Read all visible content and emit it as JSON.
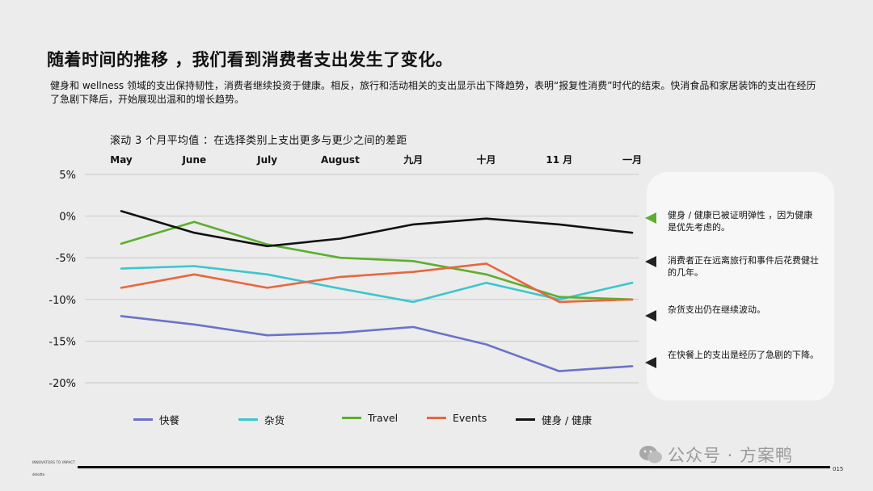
{
  "headline": "随着时间的推移 ，我们看到消费者支出发生了变化。",
  "subtitle": "健身和 wellness 领域的支出保持韧性，消费者继续投资于健康。相反，旅行和活动相关的支出显示出下降趋势，表明“报复性消费”时代的结束。快消食品和家居装饰的支出在经历了急剧下降后，开始展现出温和的增长趋势。",
  "chart_data": {
    "type": "line",
    "title": "滚动 3 个月平均值 ：在选择类别上支出更多与更少之间的差距",
    "x": [
      "May",
      "June",
      "July",
      "August",
      "九月",
      "十月",
      "11 月",
      "一月"
    ],
    "y_ticks": [
      "5%",
      "0%",
      "-5%",
      "-10%",
      "-15%",
      "-20%"
    ],
    "ylim": [
      -20,
      5
    ],
    "grid": true,
    "legend_position": "bottom",
    "series": [
      {
        "name": "快餐",
        "color": "#6b72c9",
        "values": [
          -12.0,
          -13.0,
          -14.3,
          -14.0,
          -13.3,
          -15.4,
          -18.6,
          -18.0
        ]
      },
      {
        "name": "杂货",
        "color": "#3cc6cf",
        "values": [
          -6.3,
          -6.0,
          -7.0,
          -8.7,
          -10.3,
          -8.0,
          -10.0,
          -8.0
        ]
      },
      {
        "name": "Travel",
        "color": "#5caf2e",
        "values": [
          -3.3,
          -0.7,
          -3.4,
          -5.0,
          -5.4,
          -7.0,
          -9.7,
          -10.0
        ]
      },
      {
        "name": "Events",
        "color": "#e8663e",
        "values": [
          -8.6,
          -7.0,
          -8.6,
          -7.3,
          -6.7,
          -5.7,
          -10.3,
          -10.0
        ]
      },
      {
        "name": "健身 / 健康",
        "color": "#111111",
        "values": [
          0.6,
          -2.0,
          -3.6,
          -2.7,
          -1.0,
          -0.3,
          -1.0,
          -2.0
        ]
      }
    ]
  },
  "callouts": [
    {
      "text": "健身 / 健康已被证明弹性 ，因为健康是优先考虑的。",
      "color": "#5caf2e"
    },
    {
      "text": "消费者正在远离旅行和事件后花费健壮的几年。",
      "color": "#222222"
    },
    {
      "text": "杂货支出仍在继续波动。",
      "color": "#222222"
    },
    {
      "text": "在快餐上的支出是经历了急剧的下降。",
      "color": "#222222"
    }
  ],
  "footer": {
    "left_top": "INNOVATORS TO IMPACT",
    "left_bottom": "deloitte",
    "page": "015"
  },
  "watermark": "公众号 · 方案鸭"
}
